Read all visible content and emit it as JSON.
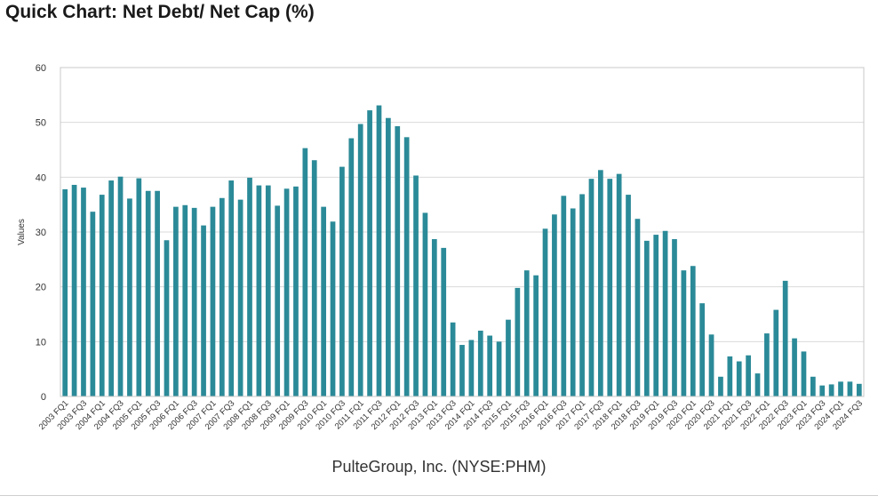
{
  "header": {
    "title": "Quick Chart: Net Debt/ Net Cap (%)"
  },
  "footer": {
    "company": "PulteGroup, Inc. (NYSE:PHM)"
  },
  "chart_data": {
    "type": "bar",
    "ylabel": "Values",
    "xlabel": "",
    "ylim": [
      0,
      60
    ],
    "yticks": [
      0,
      10,
      20,
      30,
      40,
      50,
      60
    ],
    "grid": true,
    "bar_color": "#2b8a98",
    "categories": [
      "2003 FQ1",
      "2003 FQ2",
      "2003 FQ3",
      "2003 FQ4",
      "2004 FQ1",
      "2004 FQ2",
      "2004 FQ3",
      "2004 FQ4",
      "2005 FQ1",
      "2005 FQ2",
      "2005 FQ3",
      "2005 FQ4",
      "2006 FQ1",
      "2006 FQ2",
      "2006 FQ3",
      "2006 FQ4",
      "2007 FQ1",
      "2007 FQ2",
      "2007 FQ3",
      "2007 FQ4",
      "2008 FQ1",
      "2008 FQ2",
      "2008 FQ3",
      "2008 FQ4",
      "2009 FQ1",
      "2009 FQ2",
      "2009 FQ3",
      "2009 FQ4",
      "2010 FQ1",
      "2010 FQ2",
      "2010 FQ3",
      "2010 FQ4",
      "2011 FQ1",
      "2011 FQ2",
      "2011 FQ3",
      "2011 FQ4",
      "2012 FQ1",
      "2012 FQ2",
      "2012 FQ3",
      "2012 FQ4",
      "2013 FQ1",
      "2013 FQ2",
      "2013 FQ3",
      "2013 FQ4",
      "2014 FQ1",
      "2014 FQ2",
      "2014 FQ3",
      "2014 FQ4",
      "2015 FQ1",
      "2015 FQ2",
      "2015 FQ3",
      "2015 FQ4",
      "2016 FQ1",
      "2016 FQ2",
      "2016 FQ3",
      "2016 FQ4",
      "2017 FQ1",
      "2017 FQ2",
      "2017 FQ3",
      "2017 FQ4",
      "2018 FQ1",
      "2018 FQ2",
      "2018 FQ3",
      "2018 FQ4",
      "2019 FQ1",
      "2019 FQ2",
      "2019 FQ3",
      "2019 FQ4",
      "2020 FQ1",
      "2020 FQ2",
      "2020 FQ3",
      "2020 FQ4",
      "2021 FQ1",
      "2021 FQ2",
      "2021 FQ3",
      "2021 FQ4",
      "2022 FQ1",
      "2022 FQ2",
      "2022 FQ3",
      "2022 FQ4",
      "2023 FQ1",
      "2023 FQ2",
      "2023 FQ3",
      "2023 FQ4",
      "2024 FQ1",
      "2024 FQ2",
      "2024 FQ3"
    ],
    "values": [
      37.8,
      38.6,
      38.1,
      33.7,
      36.8,
      39.4,
      40.1,
      36.1,
      39.8,
      37.5,
      37.5,
      28.5,
      34.6,
      34.9,
      34.4,
      31.2,
      34.6,
      36.2,
      39.4,
      35.9,
      39.9,
      38.5,
      38.5,
      34.8,
      37.9,
      38.3,
      45.3,
      43.1,
      34.6,
      31.9,
      41.9,
      47.1,
      49.7,
      52.2,
      53.1,
      50.8,
      49.3,
      47.3,
      40.3,
      33.5,
      28.7,
      27.1,
      13.5,
      9.4,
      10.3,
      12.0,
      11.1,
      10.0,
      14.0,
      19.8,
      23.0,
      22.1,
      30.6,
      33.2,
      36.6,
      34.3,
      36.9,
      39.7,
      41.3,
      39.7,
      40.6,
      36.8,
      32.4,
      28.4,
      29.5,
      30.2,
      28.7,
      23.0,
      23.8,
      17.0,
      11.3,
      3.6,
      7.3,
      6.4,
      7.5,
      4.2,
      11.5,
      15.8,
      21.1,
      10.6,
      8.2,
      3.6,
      2.0,
      2.2,
      2.7,
      2.7,
      2.3
    ],
    "label_every": 2
  }
}
